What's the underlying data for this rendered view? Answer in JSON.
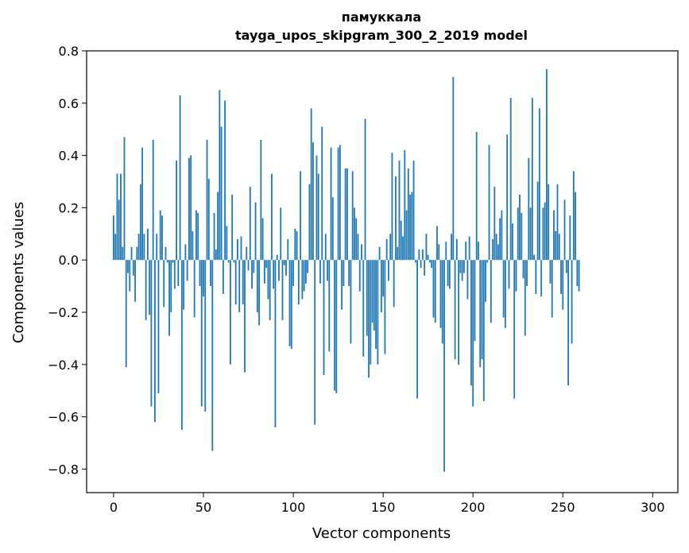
{
  "chart_data": {
    "type": "bar",
    "title": "памуккала",
    "subtitle": "tayga_upos_skipgram_300_2_2019 model",
    "xlabel": "Vector components",
    "ylabel": "Components values",
    "xlim": [
      -15,
      314
    ],
    "ylim": [
      -0.89,
      0.8
    ],
    "xticks": [
      0,
      50,
      100,
      150,
      200,
      250,
      300
    ],
    "yticks": [
      0.8,
      0.6,
      0.4,
      0.2,
      0.0,
      -0.2,
      -0.4,
      -0.6,
      -0.8
    ],
    "ytick_labels": [
      "0.8",
      "0.6",
      "0.4",
      "0.2",
      "0.0",
      "−0.2",
      "−0.4",
      "−0.6",
      "−0.8"
    ],
    "xtick_labels": [
      "0",
      "50",
      "100",
      "150",
      "200",
      "250",
      "300"
    ],
    "bar_color": "#1f77b4",
    "grid": false,
    "legend": false,
    "values": [
      0.17,
      0.1,
      0.33,
      0.23,
      0.33,
      0.05,
      0.47,
      -0.41,
      -0.05,
      -0.12,
      0.05,
      -0.06,
      -0.16,
      0.05,
      0.1,
      0.29,
      0.43,
      0.1,
      -0.23,
      0.12,
      -0.21,
      -0.56,
      0.46,
      -0.62,
      0.1,
      -0.51,
      0.19,
      0.17,
      -0.18,
      0.05,
      -0.01,
      -0.29,
      -0.2,
      -0.01,
      -0.11,
      0.38,
      -0.1,
      0.63,
      -0.65,
      -0.19,
      0.06,
      -0.08,
      0.39,
      0.4,
      0.11,
      -0.22,
      0.19,
      0.18,
      -0.1,
      -0.56,
      -0.14,
      -0.58,
      0.46,
      0.31,
      -0.1,
      -0.73,
      0.18,
      0.04,
      0.26,
      0.65,
      0.51,
      -0.13,
      0.61,
      0.13,
      -0.01,
      -0.4,
      0.25,
      -0.01,
      -0.17,
      0.08,
      -0.2,
      0.09,
      -0.17,
      -0.43,
      0.05,
      -0.04,
      0.28,
      -0.11,
      -0.05,
      0.22,
      -0.2,
      -0.25,
      0.46,
      0.16,
      -0.09,
      -0.03,
      -0.15,
      -0.23,
      0.33,
      -0.11,
      -0.64,
      0.02,
      -0.08,
      0.2,
      -0.23,
      -0.02,
      -0.06,
      0.08,
      -0.33,
      -0.34,
      -0.1,
      0.12,
      0.11,
      -0.17,
      0.34,
      -0.15,
      -0.12,
      -0.09,
      -0.05,
      0.29,
      0.58,
      0.45,
      -0.63,
      0.4,
      0.33,
      -0.09,
      0.51,
      -0.44,
      0.1,
      -0.08,
      -0.35,
      0.43,
      0.24,
      -0.5,
      -0.51,
      0.43,
      0.44,
      -0.19,
      -0.1,
      0.35,
      0.35,
      -0.1,
      -0.32,
      0.34,
      0.2,
      0.16,
      0.1,
      -0.12,
      0.06,
      -0.37,
      0.54,
      -0.29,
      -0.45,
      -0.4,
      -0.24,
      -0.27,
      -0.34,
      -0.4,
      0.05,
      -0.2,
      -0.14,
      -0.36,
      0.08,
      -0.08,
      0.1,
      0.41,
      -0.18,
      0.32,
      0.05,
      0.38,
      0.15,
      0.09,
      0.42,
      0.19,
      0.35,
      0.25,
      0.26,
      0.38,
      -0.01,
      -0.53,
      0.04,
      -0.03,
      0.04,
      -0.06,
      0.1,
      0.02,
      -0.01,
      -0.03,
      -0.22,
      -0.24,
      0.13,
      0.06,
      -0.26,
      -0.32,
      -0.81,
      0.07,
      -0.1,
      -0.11,
      0.1,
      0.7,
      -0.38,
      0.08,
      -0.4,
      -0.05,
      -0.08,
      -0.05,
      0.07,
      -0.15,
      0.09,
      -0.48,
      -0.56,
      -0.31,
      0.49,
      0.07,
      -0.41,
      -0.38,
      -0.54,
      -0.16,
      -0.01,
      0.44,
      -0.24,
      0.08,
      0.28,
      0.1,
      0.06,
      0.16,
      0.19,
      -0.22,
      -0.26,
      0.48,
      -0.11,
      0.62,
      0.14,
      -0.53,
      -0.12,
      0.2,
      0.25,
      0.18,
      -0.07,
      -0.29,
      -0.1,
      0.39,
      0.2,
      0.62,
      0.02,
      -0.13,
      0.3,
      0.58,
      -0.14,
      0.2,
      0.22,
      0.73,
      0.29,
      -0.09,
      -0.22,
      0.19,
      0.11,
      0.29,
      0.1,
      -0.13,
      -0.19,
      0.23,
      -0.05,
      -0.48,
      0.17,
      -0.32,
      0.34,
      0.26,
      -0.1,
      -0.12
    ]
  }
}
